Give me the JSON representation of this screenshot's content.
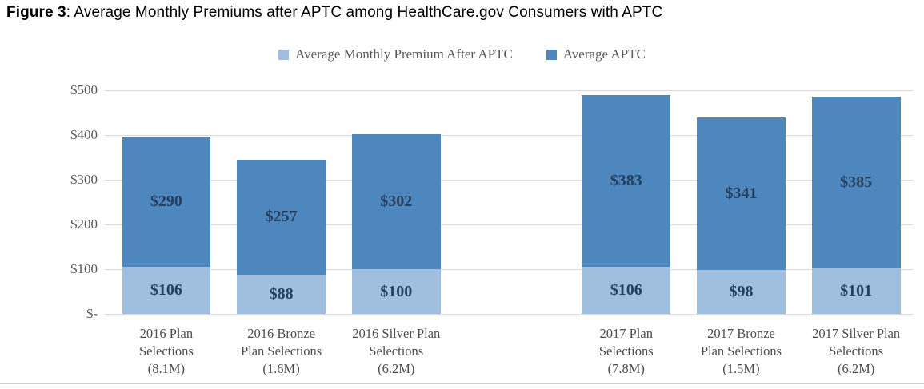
{
  "figure_title": {
    "bold_prefix": "Figure 3",
    "rest": ": Average Monthly Premiums after APTC among HealthCare.gov Consumers with APTC"
  },
  "colors": {
    "premium_after_aptc": "#A0BEDE",
    "aptc": "#4E86BE",
    "gridline": "#D9D9D9",
    "axis_text": "#595959",
    "data_label_text": "#24405E"
  },
  "chart_data": {
    "type": "bar",
    "stacked": true,
    "title": "Figure 3: Average Monthly Premiums after APTC among HealthCare.gov Consumers with APTC",
    "legend_position": "top-center",
    "grid": true,
    "categories": [
      {
        "label": "2016 Plan Selections (8.1M)",
        "lines": [
          "2016 Plan",
          "Selections",
          "(8.1M)"
        ]
      },
      {
        "label": "2016 Bronze Plan Selections (1.6M)",
        "lines": [
          "2016 Bronze",
          "Plan Selections",
          "(1.6M)"
        ]
      },
      {
        "label": "2016 Silver Plan Selections (6.2M)",
        "lines": [
          "2016 Silver Plan",
          "Selections",
          "(6.2M)"
        ]
      },
      {
        "label": "2017 Plan Selections (7.8M)",
        "lines": [
          "2017 Plan",
          "Selections",
          "(7.8M)"
        ]
      },
      {
        "label": "2017 Bronze Plan Selections (1.5M)",
        "lines": [
          "2017 Bronze",
          "Plan Selections",
          "(1.5M)"
        ]
      },
      {
        "label": "2017 Silver Plan Selections (6.2M)",
        "lines": [
          "2017 Silver Plan",
          "Selections",
          "(6.2M)"
        ]
      }
    ],
    "group_gap_after_index": 2,
    "series": [
      {
        "name": "Average Monthly Premium After APTC",
        "color": "#A0BEDE",
        "values": [
          106,
          88,
          100,
          106,
          98,
          101
        ],
        "labels": [
          "$106",
          "$88",
          "$100",
          "$106",
          "$98",
          "$101"
        ]
      },
      {
        "name": "Average APTC",
        "color": "#4E86BE",
        "values": [
          290,
          257,
          302,
          383,
          341,
          385
        ],
        "labels": [
          "$290",
          "$257",
          "$302",
          "$383",
          "$341",
          "$385"
        ]
      }
    ],
    "totals": [
      396,
      345,
      402,
      489,
      439,
      486
    ],
    "y_axis": {
      "min": 0,
      "max": 500,
      "tick_step": 100,
      "tick_labels_top_to_bottom": [
        "$500",
        "$400",
        "$300",
        "$200",
        "$100",
        "$-"
      ]
    }
  }
}
